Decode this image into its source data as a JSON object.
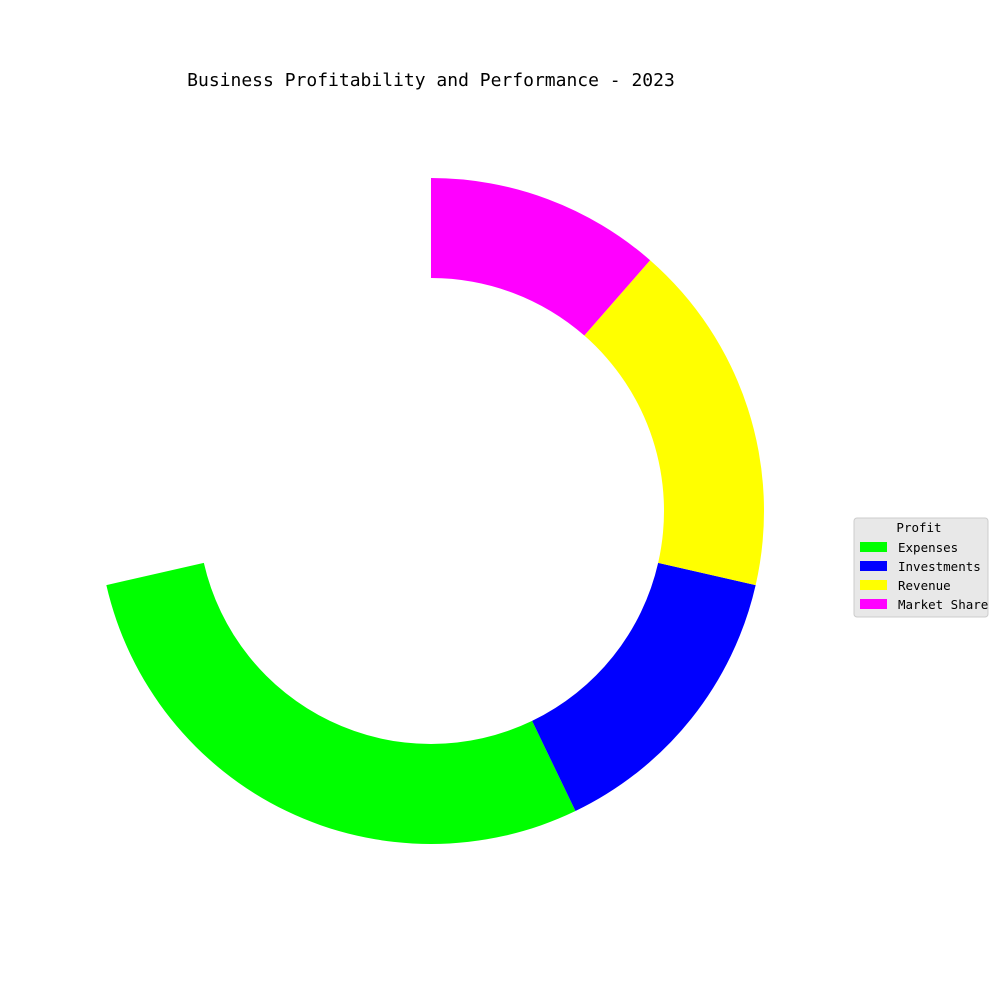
{
  "chart_data": {
    "type": "pie",
    "title": "Business Profitability and Performance - 2023",
    "legend": {
      "title": "Profit",
      "placement": "center-right",
      "entries": [
        "Expenses",
        "Investments",
        "Revenue",
        "Market Share"
      ]
    },
    "slices": [
      {
        "label": "Profit",
        "value": 25,
        "color": "#ffffff"
      },
      {
        "label": "Expenses",
        "value": 25,
        "color": "#00ff00"
      },
      {
        "label": "Investments",
        "value": 12.5,
        "color": "#0000ff"
      },
      {
        "label": "Revenue",
        "value": 15,
        "color": "#ffff00"
      },
      {
        "label": "Market Share",
        "value": 10,
        "color": "#ff00ff"
      }
    ],
    "start_angle_deg": 90,
    "direction": "counterclockwise",
    "hole": true
  }
}
